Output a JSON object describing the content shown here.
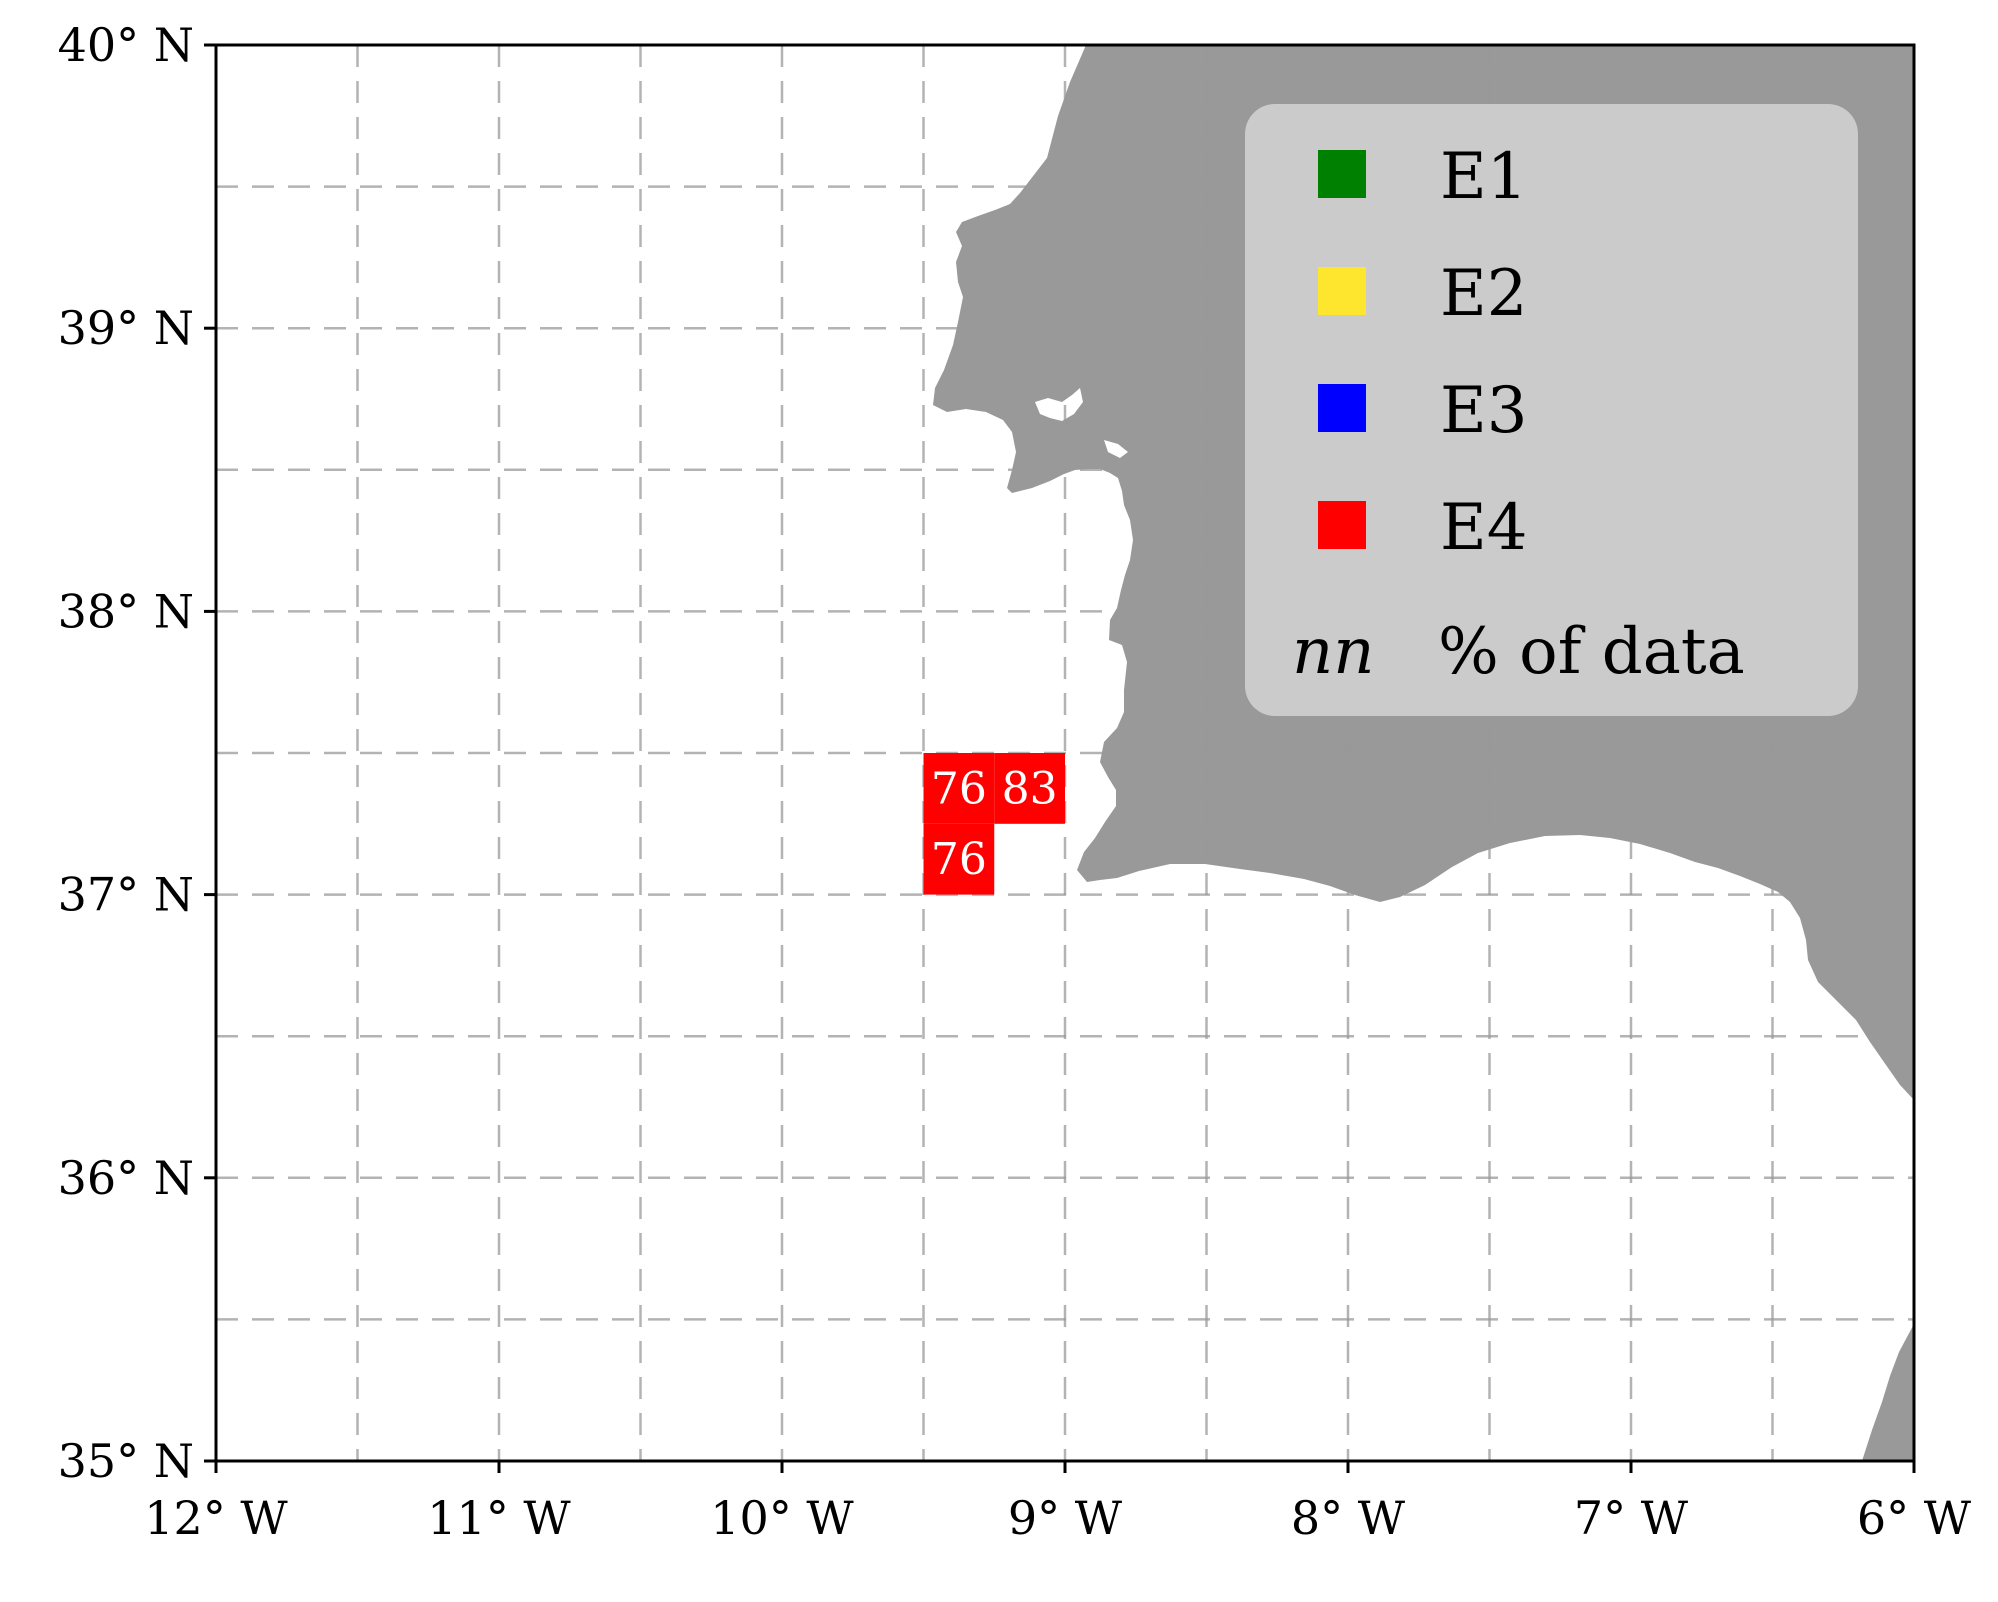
{
  "chart_data": {
    "type": "heatmap",
    "map_region": "Gulf of Cadiz / SW Portugal",
    "xlim": [
      -12,
      -6
    ],
    "ylim": [
      35,
      40
    ],
    "grid": true,
    "grid_step_deg": 0.5,
    "x_ticks": [
      {
        "value": -12,
        "label": "12° W"
      },
      {
        "value": -11,
        "label": "11° W"
      },
      {
        "value": -10,
        "label": "10° W"
      },
      {
        "value": -9,
        "label": "9° W"
      },
      {
        "value": -8,
        "label": "8° W"
      },
      {
        "value": -7,
        "label": "7° W"
      },
      {
        "value": -6,
        "label": "6° W"
      }
    ],
    "y_ticks": [
      {
        "value": 40,
        "label": "40° N"
      },
      {
        "value": 39,
        "label": "39° N"
      },
      {
        "value": 38,
        "label": "38° N"
      },
      {
        "value": 37,
        "label": "37° N"
      },
      {
        "value": 36,
        "label": "36° N"
      },
      {
        "value": 35,
        "label": "35° N"
      }
    ],
    "land_color": "#999999",
    "legend": {
      "placement": "top-right",
      "background": "#cccccc",
      "entries": [
        {
          "label": "E1",
          "color": "#008000"
        },
        {
          "label": "E2",
          "color": "#ffe62e"
        },
        {
          "label": "E3",
          "color": "#0000ff"
        },
        {
          "label": "E4",
          "color": "#ff0000"
        }
      ],
      "note_symbol": "nn",
      "note_label": "% of data"
    },
    "cells": [
      {
        "lon_min": -9.5,
        "lon_max": -9.25,
        "lat_min": 37.25,
        "lat_max": 37.5,
        "class": "E4",
        "color": "#ff0000",
        "value": "76"
      },
      {
        "lon_min": -9.25,
        "lon_max": -9.0,
        "lat_min": 37.25,
        "lat_max": 37.5,
        "class": "E4",
        "color": "#ff0000",
        "value": "83"
      },
      {
        "lon_min": -9.5,
        "lon_max": -9.25,
        "lat_min": 37.0,
        "lat_max": 37.25,
        "class": "E4",
        "color": "#ff0000",
        "value": "76"
      }
    ]
  }
}
